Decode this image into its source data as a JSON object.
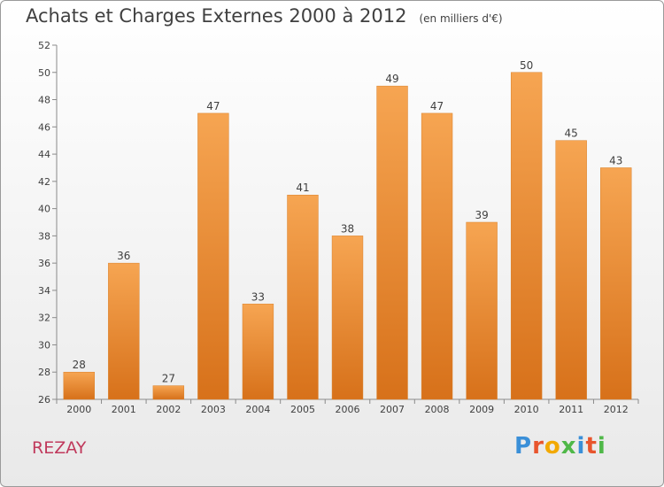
{
  "chart_data": {
    "type": "bar",
    "title": "Achats et Charges Externes 2000 à 2012",
    "subtitle": "(en milliers d'€)",
    "categories": [
      "2000",
      "2001",
      "2002",
      "2003",
      "2004",
      "2005",
      "2006",
      "2007",
      "2008",
      "2009",
      "2010",
      "2011",
      "2012"
    ],
    "values": [
      28,
      36,
      27,
      47,
      33,
      41,
      38,
      49,
      47,
      39,
      50,
      45,
      43
    ],
    "ylim": [
      26,
      52
    ],
    "yticks": [
      26,
      28,
      30,
      32,
      34,
      36,
      38,
      40,
      42,
      44,
      46,
      48,
      50,
      52
    ],
    "xlabel": "",
    "ylabel": "",
    "grid": false,
    "legend": "none",
    "bar_color": "#f0933a"
  },
  "footer": {
    "commune": "REZAY",
    "logo_letters": [
      {
        "ch": "P",
        "color": "#3a8fd8"
      },
      {
        "ch": "r",
        "color": "#e8552d"
      },
      {
        "ch": "o",
        "color": "#f2a900"
      },
      {
        "ch": "x",
        "color": "#4fb848"
      },
      {
        "ch": "i",
        "color": "#3a8fd8"
      },
      {
        "ch": "t",
        "color": "#e8552d"
      },
      {
        "ch": "i",
        "color": "#4fb848"
      }
    ]
  }
}
